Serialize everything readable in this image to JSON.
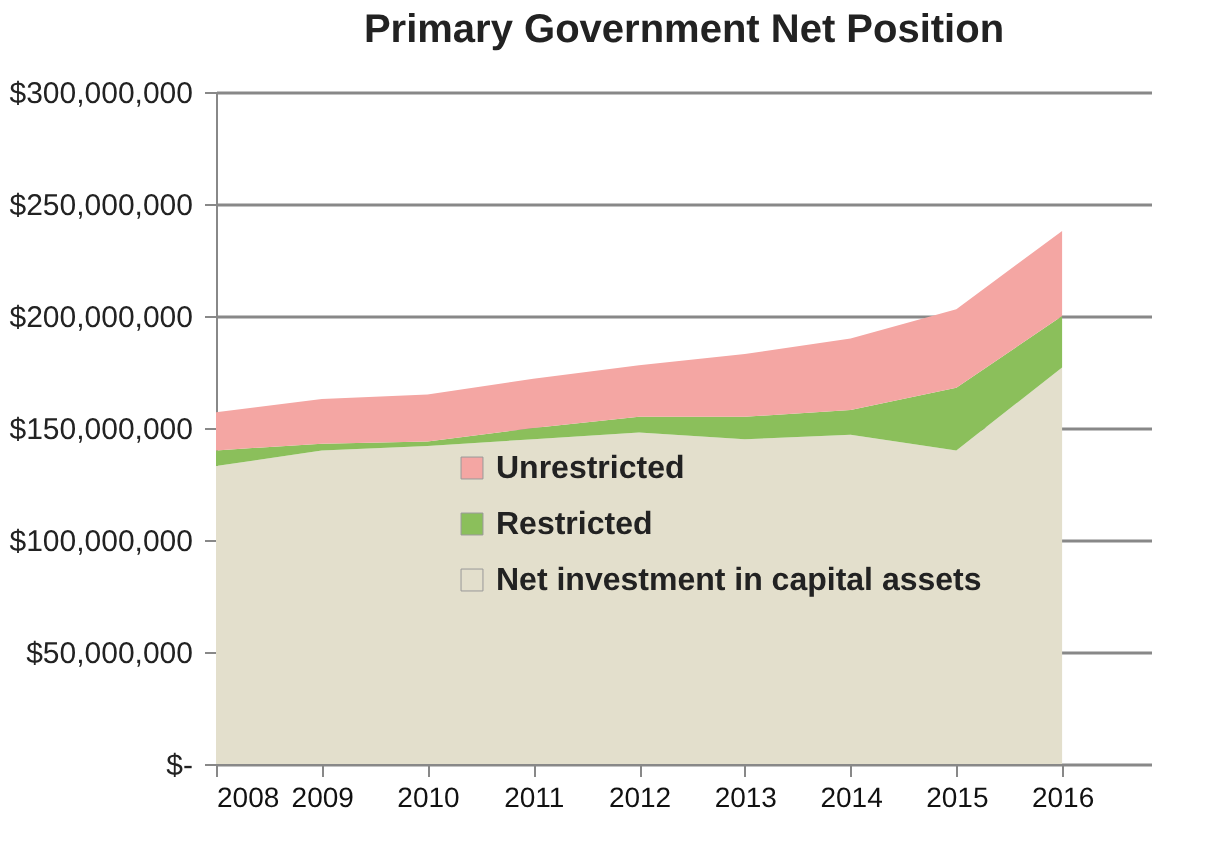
{
  "chart_data": {
    "type": "area",
    "title": "Primary Government Net Position",
    "categories": [
      "2008",
      "2009",
      "2010",
      "2011",
      "2012",
      "2013",
      "2014",
      "2015",
      "2016"
    ],
    "stacked": true,
    "series": [
      {
        "name": "Net investment in capital assets",
        "color": "#e3dfcc",
        "values": [
          133000000,
          140000000,
          142000000,
          145000000,
          148000000,
          145000000,
          147000000,
          140000000,
          177000000
        ]
      },
      {
        "name": "Restricted",
        "color": "#8bbf5b",
        "values": [
          7000000,
          3000000,
          2000000,
          5000000,
          7000000,
          10000000,
          11000000,
          28000000,
          23000000
        ]
      },
      {
        "name": "Unrestricted",
        "color": "#f4a6a3",
        "values": [
          17000000,
          20000000,
          21000000,
          22000000,
          23000000,
          28000000,
          32000000,
          35000000,
          38000000
        ]
      }
    ],
    "ylim": [
      0,
      300000000
    ],
    "yticks": [
      {
        "value": 0,
        "label": "$-"
      },
      {
        "value": 50000000,
        "label": "$50,000,000"
      },
      {
        "value": 100000000,
        "label": "$100,000,000"
      },
      {
        "value": 150000000,
        "label": "$150,000,000"
      },
      {
        "value": 200000000,
        "label": "$200,000,000"
      },
      {
        "value": 250000000,
        "label": "$250,000,000"
      },
      {
        "value": 300000000,
        "label": "$300,000,000"
      }
    ],
    "grid": "y",
    "legend": "bottom"
  }
}
